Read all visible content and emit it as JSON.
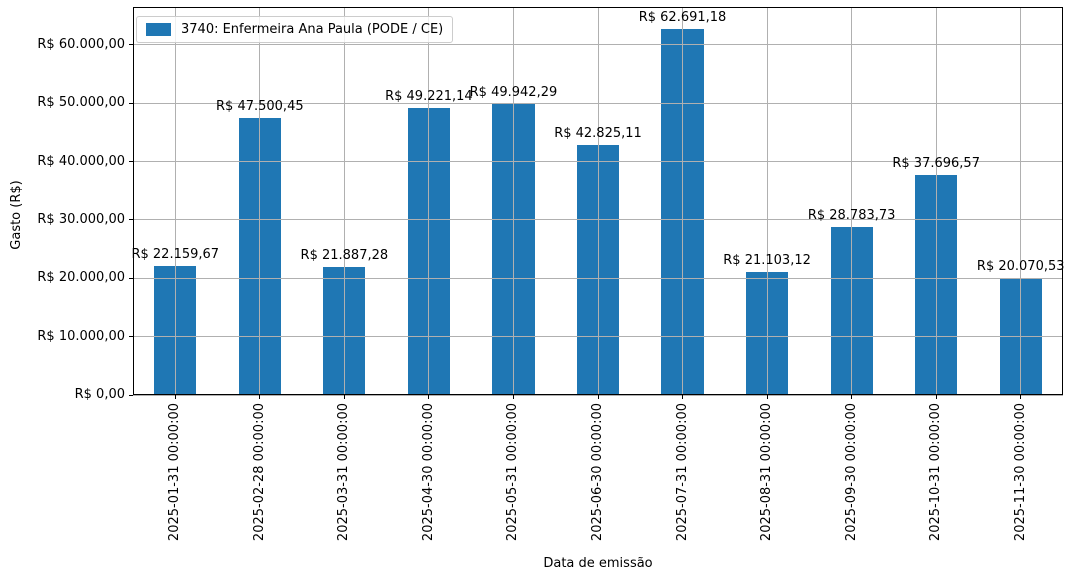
{
  "chart_data": {
    "type": "bar",
    "title": "",
    "xlabel": "Data de emissão",
    "ylabel": "Gasto (R$)",
    "legend": {
      "position": "upper left",
      "entries": [
        {
          "label": "3740: Enfermeira Ana Paula (PODE / CE)",
          "color": "#1f77b4"
        }
      ]
    },
    "categories": [
      "2025-01-31 00:00:00",
      "2025-02-28 00:00:00",
      "2025-03-31 00:00:00",
      "2025-04-30 00:00:00",
      "2025-05-31 00:00:00",
      "2025-06-30 00:00:00",
      "2025-07-31 00:00:00",
      "2025-08-31 00:00:00",
      "2025-09-30 00:00:00",
      "2025-10-31 00:00:00",
      "2025-11-30 00:00:00"
    ],
    "values": [
      22159.67,
      47500.45,
      21887.28,
      49221.14,
      49942.29,
      42825.11,
      62691.18,
      21103.12,
      28783.73,
      37696.57,
      20070.53
    ],
    "bar_labels": [
      "R$ 22.159,67",
      "R$ 47.500,45",
      "R$ 21.887,28",
      "R$ 49.221,14",
      "R$ 49.942,29",
      "R$ 42.825,11",
      "R$ 62.691,18",
      "R$ 21.103,12",
      "R$ 28.783,73",
      "R$ 37.696,57",
      "R$ 20.070,53"
    ],
    "bar_color": "#1f77b4",
    "ylim": [
      0,
      66500
    ],
    "yticks": [
      {
        "value": 0,
        "label": "R$ 0,00"
      },
      {
        "value": 10000,
        "label": "R$ 10.000,00"
      },
      {
        "value": 20000,
        "label": "R$ 20.000,00"
      },
      {
        "value": 30000,
        "label": "R$ 30.000,00"
      },
      {
        "value": 40000,
        "label": "R$ 40.000,00"
      },
      {
        "value": 50000,
        "label": "R$ 50.000,00"
      },
      {
        "value": 60000,
        "label": "R$ 60.000,00"
      }
    ],
    "grid": true,
    "grid_color": "#b0b0b0"
  }
}
